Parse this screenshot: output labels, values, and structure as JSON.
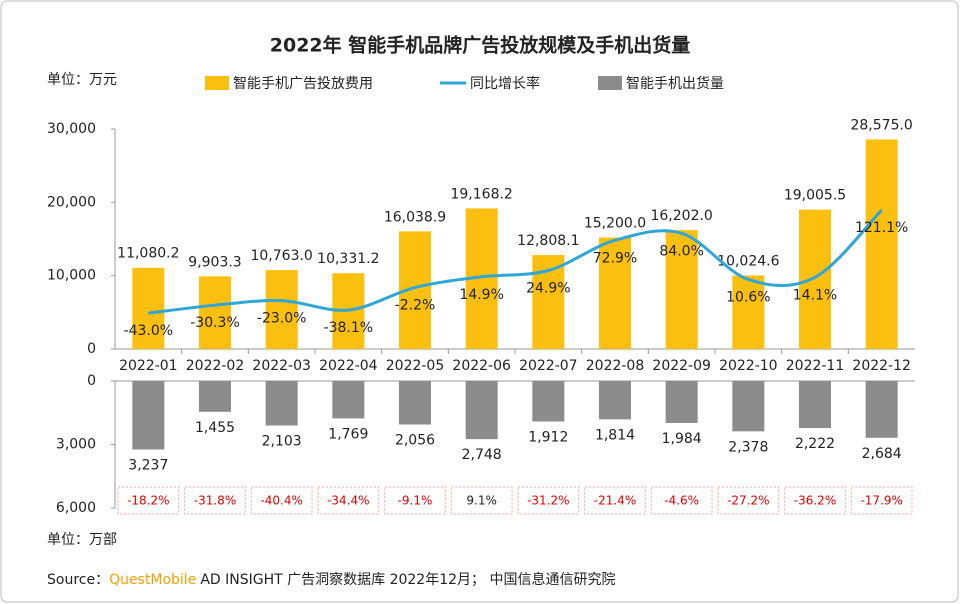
{
  "title": "2022年 智能手机品牌广告投放规模及手机出货量",
  "source": {
    "label": "Source：",
    "brand": "QuestMobile",
    "text": "AD INSIGHT 广告洞察数据库 2022年12月； 中国信息通信研究院"
  },
  "chart_data": [
    {
      "type": "bar-line",
      "unit": "单位：万元",
      "categories": [
        "2022-01",
        "2022-02",
        "2022-03",
        "2022-04",
        "2022-05",
        "2022-06",
        "2022-07",
        "2022-08",
        "2022-09",
        "2022-10",
        "2022-11",
        "2022-12"
      ],
      "series": [
        {
          "name": "智能手机广告投放费用",
          "color": "#fbbf10",
          "values": [
            11080.2,
            9903.3,
            10763.0,
            10331.2,
            16038.9,
            19168.2,
            12808.1,
            15200.0,
            16202.0,
            10024.6,
            19005.5,
            28575.0
          ],
          "value_labels": [
            "11,080.2",
            "9,903.3",
            "10,763.0",
            "10,331.2",
            "16,038.9",
            "19,168.2",
            "12,808.1",
            "15,200.0",
            "16,202.0",
            "10,024.6",
            "19,005.5",
            "28,575.0"
          ]
        },
        {
          "name": "同比增长率",
          "color": "#2ea6d8",
          "axis": "y2",
          "values": [
            -43.0,
            -30.3,
            -23.0,
            -38.1,
            -2.2,
            14.9,
            24.9,
            72.9,
            84.0,
            10.6,
            14.1,
            121.1
          ],
          "value_labels": [
            "-43.0%",
            "-30.3%",
            "-23.0%",
            "-38.1%",
            "-2.2%",
            "14.9%",
            "24.9%",
            "72.9%",
            "84.0%",
            "10.6%",
            "14.1%",
            "121.1%"
          ]
        }
      ],
      "ylim": [
        0,
        30000
      ],
      "yticks": [
        0,
        {
          "value": 10000,
          "label": "10,000"
        },
        {
          "value": 20000,
          "label": "20,000"
        },
        {
          "value": 30000,
          "label": "30,000"
        }
      ],
      "y2lim": [
        -100,
        250
      ]
    },
    {
      "type": "bar",
      "unit": "单位：万部",
      "inverted": true,
      "series": [
        {
          "name": "智能手机出货量",
          "color": "#8c8c8c",
          "values": [
            3237,
            1455,
            2103,
            1769,
            2056,
            2748,
            1912,
            1814,
            1984,
            2378,
            2222,
            2684
          ],
          "value_labels": [
            "3,237",
            "1,455",
            "2,103",
            "1,769",
            "2,056",
            "2,748",
            "1,912",
            "1,814",
            "1,984",
            "2,378",
            "2,222",
            "2,684"
          ]
        }
      ],
      "growth": {
        "values": [
          -18.2,
          -31.8,
          -40.4,
          -34.4,
          -9.1,
          9.1,
          -31.2,
          -21.4,
          -4.6,
          -27.2,
          -36.2,
          -17.9
        ],
        "value_labels": [
          "-18.2%",
          "-31.8%",
          "-40.4%",
          "-34.4%",
          "-9.1%",
          "9.1%",
          "-31.2%",
          "-21.4%",
          "-4.6%",
          "-27.2%",
          "-36.2%",
          "-17.9%"
        ]
      },
      "ylim": [
        0,
        6000
      ],
      "yticks": [
        0,
        {
          "value": 3000,
          "label": "3,000"
        },
        {
          "value": 6000,
          "label": "6,000"
        }
      ]
    }
  ]
}
